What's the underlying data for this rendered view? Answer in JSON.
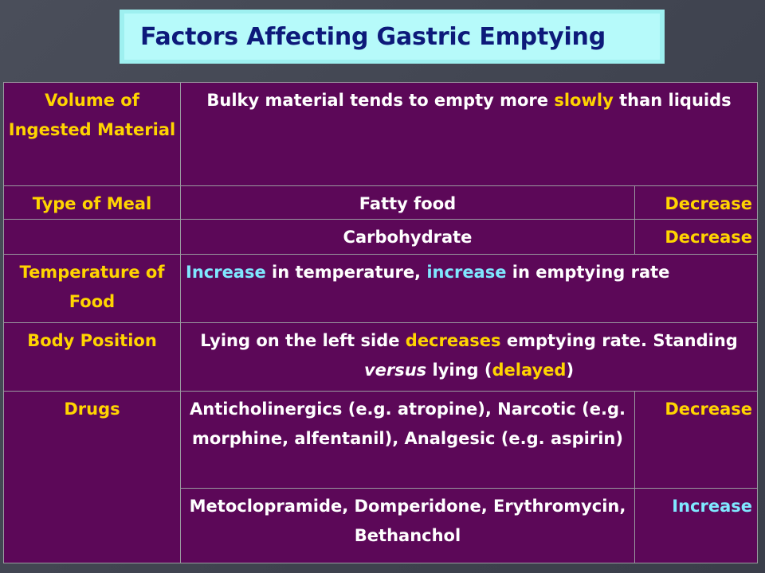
{
  "title": "Factors Affecting Gastric Emptying",
  "rows": {
    "volume": {
      "factor": "Volume of Ingested Material",
      "desc_a": "Bulky material tends to empty more ",
      "desc_b": "slowly",
      "desc_c": " than liquids"
    },
    "meal_fat": {
      "factor": "Type of Meal",
      "item": "Fatty food",
      "effect": "Decrease"
    },
    "meal_carb": {
      "item": "Carbohydrate",
      "effect": "Decrease"
    },
    "temperature": {
      "factor": "Temperature of Food",
      "desc_a": "Increase",
      "desc_b": " in temperature, ",
      "desc_c": "increase",
      "desc_d": " in emptying rate"
    },
    "posture": {
      "factor": "Body Position",
      "desc_a": "Lying on the left side ",
      "desc_b": "decreases",
      "desc_c": " emptying rate. Standing ",
      "desc_d": "versus",
      "desc_e": " lying (",
      "desc_f": "delayed",
      "desc_g": ")"
    },
    "drugs_a": {
      "factor": "Drugs",
      "item": "Anticholinergics (e.g. atropine), Narcotic (e.g. morphine, alfentanil), Analgesic (e.g. aspirin)",
      "effect": "Decrease"
    },
    "drugs_b": {
      "item": "Metoclopramide, Domperidone, Erythromycin, Bethanchol",
      "effect": "Increase"
    }
  },
  "colors": {
    "table_bg": "#5c0858",
    "highlight_yellow": "#ffd400",
    "highlight_cyan": "#7fe8ff",
    "title_text": "#0d1a7a",
    "title_bg": "#b6fafa"
  }
}
